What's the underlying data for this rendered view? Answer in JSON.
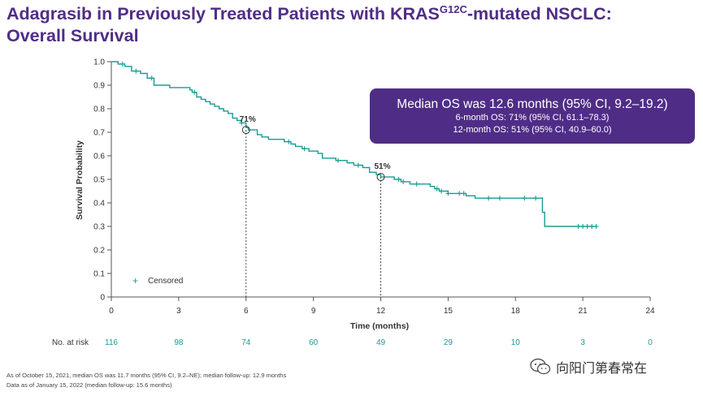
{
  "title": {
    "line1_before": "Adagrasib in Previously Treated Patients with KRAS",
    "superscript": "G12C",
    "line1_after": "-mutated NSCLC:",
    "line2": "Overall Survival"
  },
  "median_box": {
    "main": "Median OS was 12.6 months (95% CI, 9.2–19.2)",
    "line2": "6-month OS: 71% (95% CI, 61.1–78.3)",
    "line3": "12-month OS: 51% (95% CI, 40.9–60.0)"
  },
  "legend": {
    "marker": "+",
    "label": "Censored"
  },
  "risk_table": {
    "label": "No. at risk",
    "values": [
      "116",
      "98",
      "74",
      "60",
      "49",
      "29",
      "10",
      "3",
      "0"
    ]
  },
  "footnotes": [
    "As of October 15, 2021, median OS was 11.7 months (95% CI, 9.2–NE); median follow-up: 12.9 months",
    "Data as of January 15, 2022 (median follow-up: 15.6 months)"
  ],
  "watermark": {
    "text": "向阳门第春常在",
    "icon": "wechat-icon"
  },
  "colors": {
    "curve": "#1a9b94",
    "purple": "#4f2d87",
    "axis": "#555555"
  },
  "chart_data": {
    "type": "line",
    "title": "Overall Survival",
    "xlabel": "Time (months)",
    "ylabel": "Survival Probability",
    "xlim": [
      0,
      24
    ],
    "ylim": [
      0,
      1.0
    ],
    "xticks": [
      0,
      3,
      6,
      9,
      12,
      15,
      18,
      21,
      24
    ],
    "yticks": [
      0,
      0.1,
      0.2,
      0.3,
      0.4,
      0.5,
      0.6,
      0.7,
      0.8,
      0.9,
      1.0
    ],
    "ytick_labels": [
      "0",
      "0.1",
      "0.2",
      "0.3",
      "0.4",
      "0.5",
      "0.6",
      "0.7",
      "0.8",
      "0.9",
      "1.0"
    ],
    "series": [
      {
        "name": "Overall survival",
        "steps": [
          [
            0,
            1.0
          ],
          [
            0.3,
            0.99
          ],
          [
            0.6,
            0.98
          ],
          [
            0.9,
            0.96
          ],
          [
            1.3,
            0.95
          ],
          [
            1.6,
            0.93
          ],
          [
            1.9,
            0.9
          ],
          [
            2.5,
            0.9
          ],
          [
            2.6,
            0.89
          ],
          [
            3.5,
            0.88
          ],
          [
            3.6,
            0.87
          ],
          [
            3.8,
            0.85
          ],
          [
            4.0,
            0.84
          ],
          [
            4.2,
            0.83
          ],
          [
            4.4,
            0.82
          ],
          [
            4.6,
            0.81
          ],
          [
            4.8,
            0.8
          ],
          [
            5.0,
            0.79
          ],
          [
            5.2,
            0.78
          ],
          [
            5.4,
            0.76
          ],
          [
            5.6,
            0.75
          ],
          [
            5.8,
            0.74
          ],
          [
            6.0,
            0.72
          ],
          [
            6.1,
            0.71
          ],
          [
            6.5,
            0.69
          ],
          [
            6.7,
            0.68
          ],
          [
            7.0,
            0.67
          ],
          [
            7.5,
            0.67
          ],
          [
            7.7,
            0.66
          ],
          [
            8.0,
            0.65
          ],
          [
            8.2,
            0.64
          ],
          [
            8.5,
            0.63
          ],
          [
            8.8,
            0.62
          ],
          [
            9.2,
            0.61
          ],
          [
            9.4,
            0.59
          ],
          [
            9.7,
            0.59
          ],
          [
            10.0,
            0.58
          ],
          [
            10.5,
            0.57
          ],
          [
            10.8,
            0.56
          ],
          [
            11.2,
            0.55
          ],
          [
            11.5,
            0.53
          ],
          [
            11.8,
            0.52
          ],
          [
            12.0,
            0.51
          ],
          [
            12.3,
            0.51
          ],
          [
            12.6,
            0.5
          ],
          [
            12.9,
            0.49
          ],
          [
            13.3,
            0.48
          ],
          [
            14.0,
            0.48
          ],
          [
            14.2,
            0.47
          ],
          [
            14.4,
            0.46
          ],
          [
            14.6,
            0.45
          ],
          [
            15.0,
            0.44
          ],
          [
            15.2,
            0.44
          ],
          [
            15.8,
            0.43
          ],
          [
            16.0,
            0.43
          ],
          [
            16.2,
            0.42
          ],
          [
            19.2,
            0.42
          ],
          [
            19.2,
            0.36
          ],
          [
            19.3,
            0.3
          ],
          [
            21.6,
            0.3
          ]
        ],
        "censored_times": [
          0.5,
          1.1,
          1.8,
          3.7,
          5.8,
          7.9,
          8.6,
          10.1,
          11.0,
          12.8,
          13.0,
          13.6,
          14.5,
          14.7,
          15.0,
          15.5,
          15.7,
          16.8,
          17.3,
          18.4,
          18.9,
          20.8,
          21.0,
          21.2,
          21.4,
          21.6
        ]
      }
    ],
    "annotations": [
      {
        "x": 6,
        "y": 0.71,
        "label": "71%"
      },
      {
        "x": 12,
        "y": 0.51,
        "label": "51%"
      }
    ]
  }
}
